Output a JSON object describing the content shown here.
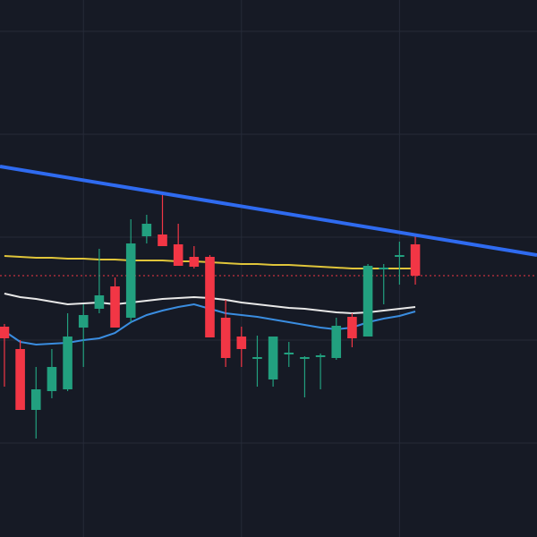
{
  "chart_data": {
    "type": "candlestick",
    "xlim": [
      -0.28,
      33.7
    ],
    "ylim": [
      0,
      600
    ],
    "xticks": [
      5,
      15,
      25
    ],
    "yticks": [
      565,
      450,
      335,
      220,
      105
    ],
    "grid": true,
    "up_color": "#22a07f",
    "down_color": "#f23645",
    "open": [
      235,
      210,
      142,
      163,
      165,
      234,
      255,
      280,
      245,
      336,
      338,
      327,
      313,
      313,
      245,
      224,
      199,
      176,
      204,
      199,
      201,
      200,
      246,
      224,
      299,
      313,
      327
    ],
    "high": [
      238,
      220,
      190,
      210,
      250,
      260,
      322,
      290,
      355,
      360,
      385,
      350,
      325,
      315,
      265,
      235,
      225,
      224,
      218,
      202,
      205,
      245,
      250,
      305,
      305,
      330,
      338
    ],
    "low": [
      168,
      142,
      110,
      155,
      163,
      190,
      250,
      234,
      240,
      328,
      325,
      303,
      300,
      223,
      190,
      190,
      168,
      168,
      190,
      156,
      165,
      198,
      212,
      224,
      260,
      282,
      282
    ],
    "close": [
      222,
      142,
      165,
      190,
      224,
      248,
      270,
      234,
      328,
      350,
      325,
      303,
      302,
      223,
      200,
      210,
      201,
      224,
      206,
      201,
      203,
      236,
      222,
      303,
      301,
      315,
      292
    ],
    "series": [
      {
        "color": "#e0c53a",
        "values": [
          314,
          313,
          312,
          312,
          311,
          311,
          310,
          310,
          309,
          309,
          309,
          308,
          308,
          307,
          306,
          305,
          305,
          304,
          304,
          303,
          302,
          301,
          300,
          300,
          300,
          300,
          300
        ]
      },
      {
        "color": "#e8e8e8",
        "values": [
          272,
          268,
          266,
          263,
          260,
          261,
          262,
          260,
          262,
          264,
          266,
          267,
          268,
          267,
          265,
          262,
          260,
          258,
          256,
          255,
          253,
          251,
          250,
          251,
          253,
          255,
          257
        ]
      },
      {
        "color": "#3a8de0",
        "values": [
          230,
          218,
          215,
          216,
          217,
          220,
          222,
          228,
          240,
          248,
          253,
          257,
          260,
          255,
          250,
          248,
          246,
          243,
          240,
          237,
          234,
          232,
          234,
          240,
          244,
          247,
          252
        ]
      }
    ],
    "trendline": {
      "color": "#2f6bf0",
      "x": [
        -0.28,
        33.7
      ],
      "values": [
        414,
        315
      ]
    },
    "price_line": {
      "color": "#f23645",
      "value": 292
    }
  }
}
